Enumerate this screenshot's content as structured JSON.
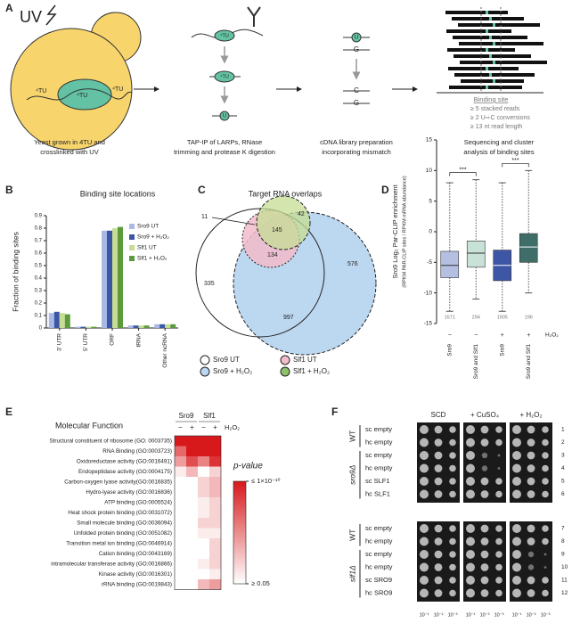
{
  "panel_a": {
    "label": "A",
    "uv": "UV",
    "cell_tu": [
      "⁴TU",
      "⁴TU",
      "⁴TU"
    ],
    "step2_tu": [
      "⁴TU",
      "⁴TU"
    ],
    "step2_u": "U",
    "step3_letters": [
      "U",
      "G",
      "C",
      "G"
    ],
    "captions": [
      [
        "Yeast grown in 4TU and",
        "crosslinked with UV"
      ],
      [
        "TAP-IP of LARPs, RNase",
        "trimming and protease K digestion"
      ],
      [
        "cDNA library preparation",
        "incorporating mismatch"
      ],
      [
        "Sequencing and cluster",
        "analysis of binding sites"
      ]
    ],
    "binding_site": {
      "title": "Binding site",
      "criteria": [
        "≥ 5 stacked reads",
        "≥ 2 U⇨C conversions",
        "≥ 13 nt read length"
      ]
    }
  },
  "chart_data": [
    {
      "panel": "B",
      "type": "bar",
      "title": "Binding site locations",
      "y_label": "Fraction of binding sites",
      "categories": [
        "3' UTR",
        "5' UTR",
        "ORF",
        "tRNA",
        "Other ncRNA"
      ],
      "series": [
        {
          "name": "Sro9 UT",
          "color": "#a9b9e3",
          "values": [
            0.12,
            0.01,
            0.78,
            0.02,
            0.03
          ]
        },
        {
          "name": "Sro9 + H₂O₂",
          "color": "#3a56a5",
          "values": [
            0.13,
            0.01,
            0.78,
            0.02,
            0.03
          ]
        },
        {
          "name": "Slf1 UT",
          "color": "#c6dd93",
          "values": [
            0.12,
            0.01,
            0.8,
            0.02,
            0.03
          ]
        },
        {
          "name": "Slf1 + H₂O₂",
          "color": "#5b9a3d",
          "values": [
            0.11,
            0.01,
            0.81,
            0.02,
            0.03
          ]
        }
      ],
      "ylim": [
        0,
        0.9
      ],
      "yticks": [
        0,
        0.1,
        0.2,
        0.3,
        0.4,
        0.5,
        0.6,
        0.7,
        0.8,
        0.9
      ],
      "legend": "top-right"
    },
    {
      "panel": "D",
      "type": "box",
      "y_label": [
        "Sro9 Log₂ Par-CLIP enrichment",
        "(RPKM PAR-CLIP sites / RPKM mRNA abundance)"
      ],
      "categories": [
        "Sro9",
        "Sro9 and Slf1",
        "Sro9",
        "Sro9 and Slf1"
      ],
      "boxes": [
        {
          "whisker_low": -13,
          "q1": -7.5,
          "median": -5.5,
          "q3": -3.2,
          "whisker_high": 8
        },
        {
          "whisker_low": -11,
          "q1": -5.8,
          "median": -3.5,
          "q3": -1.5,
          "whisker_high": 8.5
        },
        {
          "whisker_low": -13,
          "q1": -8,
          "median": -5.5,
          "q3": -3,
          "whisker_high": 8
        },
        {
          "whisker_low": -10,
          "q1": -5,
          "median": -2.5,
          "q3": -0.3,
          "whisker_high": 10
        }
      ],
      "colors": [
        "#b4bfe2",
        "#c8e2d8",
        "#3d56a6",
        "#3f6e69"
      ],
      "counts": [
        1671,
        294,
        1905,
        196
      ],
      "treatment": [
        "−",
        "−",
        "+",
        "+"
      ],
      "treatment_label": "H₂O₂",
      "significance": [
        "***",
        "***"
      ],
      "ylim": [
        -15,
        15
      ],
      "yticks": [
        -15,
        -10,
        -5,
        0,
        5,
        10,
        15
      ]
    },
    {
      "panel": "E",
      "type": "heatmap",
      "title": "Molecular Function",
      "column_groups": [
        "Sro9",
        "Slf1"
      ],
      "columns": [
        "−",
        "+",
        "−",
        "+"
      ],
      "treatment_label": "H₂O₂",
      "rows": [
        "Structural constituent of ribosome (GO: 0003735)",
        "RNA Binding (GO:0003723)",
        "Oxidoreductase activity (GO:0016491)",
        "Endopeptidase activity (GO:0004175)",
        "Carbon-oxygen lyase activity(GO:0016835)",
        "Hydro-lyase activity (GO:0016836)",
        "ATP binding (GO:0005524)",
        "Heat shock protein binding (GO:0031072)",
        "Small molecule binding (GO:0036094)",
        "Unfolded protein binding (GO:0051082)",
        "Transition metal ion binding (GO:0046914)",
        "Cation binding (GO:0043169)",
        "intramolecular transferase activity (GO:0016866)",
        "Kinase activity (GO:0016301)",
        "rRNA binding (GO:0019843)"
      ],
      "values": [
        [
          1e-10,
          1e-10,
          1e-10,
          1e-10
        ],
        [
          1e-07,
          1e-10,
          1e-10,
          1e-10
        ],
        [
          1e-05,
          1e-08,
          1e-06,
          1e-09
        ],
        [
          0.01,
          0.0001,
          0.05,
          0.001
        ],
        [
          0.05,
          0.05,
          0.001,
          0.0001
        ],
        [
          0.05,
          0.05,
          0.001,
          0.0001
        ],
        [
          0.05,
          0.05,
          0.01,
          0.001
        ],
        [
          0.05,
          0.05,
          0.01,
          0.001
        ],
        [
          0.05,
          0.05,
          0.001,
          0.001
        ],
        [
          0.05,
          0.05,
          0.01,
          0.01
        ],
        [
          0.05,
          0.05,
          0.05,
          0.001
        ],
        [
          0.05,
          0.05,
          0.05,
          0.001
        ],
        [
          0.05,
          0.05,
          0.01,
          0.001
        ],
        [
          0.05,
          0.05,
          0.05,
          0.01
        ],
        [
          0.05,
          0.05,
          0.0001,
          1e-05
        ]
      ],
      "colorbar_label": "p-value",
      "clim": [
        1e-10,
        0.05
      ],
      "colorbar_ticks": [
        {
          "value": 1e-10,
          "label": "≤ 1×10⁻¹⁰"
        },
        {
          "value": 0.05,
          "label": "≥ 0.05"
        }
      ],
      "color": "#d7191c"
    }
  ],
  "panel_c": {
    "label": "C",
    "title": "Target RNA overlaps",
    "counts": {
      "slf1_ut_only": 11,
      "slf1_h2o2": 42,
      "core": 145,
      "slf1_ut_sro9": 134,
      "sro9_ut_only": 335,
      "sro9_h2o2_only": 576,
      "sro9_shared": 997
    },
    "legend": [
      "Sro9 UT",
      "Slf1 UT",
      "Sro9 + H₂O₂",
      "Slf1 + H₂O₂"
    ]
  },
  "panel_f": {
    "label": "F",
    "conditions": [
      "SCD",
      "+ CuSO₄",
      "+ H₂O₂"
    ],
    "groups": [
      {
        "name": "WT",
        "rows": [
          "sc empty",
          "hc empty"
        ]
      },
      {
        "name": "sro9Δ",
        "rows": [
          "sc empty",
          "hc empty",
          "sc SLF1",
          "hc SLF1"
        ]
      },
      {
        "name": "WT",
        "rows": [
          "sc empty",
          "hc empty"
        ]
      },
      {
        "name": "slf1Δ",
        "rows": [
          "sc empty",
          "hc empty",
          "sc SRO9",
          "hc SRO9"
        ]
      }
    ],
    "row_numbers": [
      1,
      2,
      3,
      4,
      5,
      6,
      7,
      8,
      9,
      10,
      11,
      12
    ],
    "dilutions": [
      "10⁻¹",
      "10⁻²",
      "10⁻³"
    ]
  }
}
